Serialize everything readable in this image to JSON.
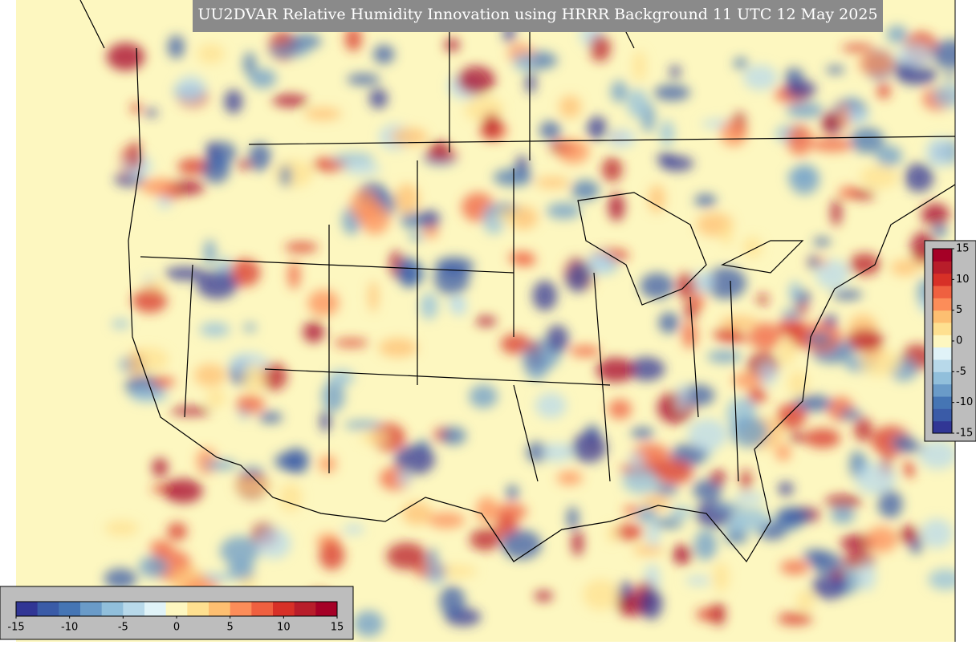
{
  "title": "UU2DVAR Relative Humidity Innovation using HRRR Background 11 UTC 12 May 2025",
  "colorbar": {
    "lim": [
      -15,
      15
    ],
    "ticks": [
      -15,
      -10,
      -5,
      0,
      5,
      10,
      15
    ]
  }
}
